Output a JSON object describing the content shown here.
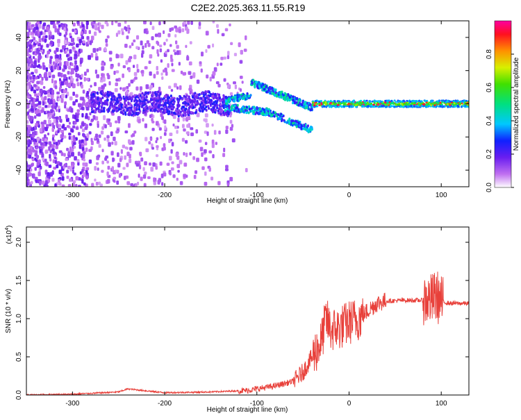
{
  "title": "C2E2.2025.363.11.55.R19",
  "colors": {
    "signal_trace": "#e8403a",
    "spectrogram_low": "#7a2cf0",
    "spectrogram_high": "#ff0040"
  },
  "chart_data": [
    {
      "type": "heatmap",
      "xlabel": "Height of straight line (km)",
      "ylabel": "Frequency (Hz)",
      "xlim": [
        -350,
        130
      ],
      "ylim": [
        -50,
        50
      ],
      "x_ticks": [
        -300,
        -200,
        -100,
        0,
        100
      ],
      "y_ticks": [
        -40,
        -20,
        0,
        20,
        40
      ],
      "colorbar": {
        "label": "Normalized spectral amplitude",
        "range": [
          0,
          1
        ],
        "ticks": [
          "0.0",
          "0.2",
          "0.4",
          "0.6",
          "0.8"
        ],
        "tick_values": [
          0,
          0.2,
          0.4,
          0.6,
          0.8
        ]
      },
      "features": [
        {
          "x": [
            -280,
            -130
          ],
          "y": [
            -5,
            5
          ],
          "amplitude": 0.15
        },
        {
          "x": [
            -130,
            -70
          ],
          "y": [
            -8,
            14
          ],
          "amplitude": 0.35
        },
        {
          "x": [
            -70,
            -40
          ],
          "y": [
            -17,
            10
          ],
          "amplitude": 0.45
        },
        {
          "x": [
            -40,
            130
          ],
          "y": [
            -2,
            2
          ],
          "amplitude": 0.9
        }
      ]
    },
    {
      "type": "line",
      "xlabel": "Height of straight line (km)",
      "ylabel": "SNR (10 * v/v)",
      "y_multiplier": "(x10",
      "y_multiplier_exp": "4",
      "y_multiplier_close": ")",
      "xlim": [
        -350,
        130
      ],
      "ylim": [
        0,
        2.2
      ],
      "x_ticks": [
        -300,
        -200,
        -100,
        0,
        100
      ],
      "y_ticks": [
        "0.0",
        "0.5",
        "1.0",
        "1.5",
        "2.0"
      ],
      "y_tick_values": [
        0,
        0.5,
        1,
        1.5,
        2
      ],
      "series": [
        {
          "x": [
            -350,
            -300,
            -250,
            -240,
            -200,
            -150,
            -110,
            -100,
            -80,
            -60,
            -50,
            -40,
            -30,
            -25,
            -20,
            -10,
            0,
            10,
            20,
            30,
            40,
            60,
            80,
            90,
            95,
            100,
            110,
            130
          ],
          "y": [
            0.0,
            0.01,
            0.04,
            0.08,
            0.03,
            0.04,
            0.06,
            0.08,
            0.12,
            0.18,
            0.3,
            0.5,
            0.7,
            1.0,
            0.85,
            0.88,
            0.95,
            1.0,
            1.1,
            1.2,
            1.23,
            1.24,
            1.24,
            1.25,
            1.3,
            1.22,
            1.2,
            1.2
          ]
        }
      ]
    }
  ]
}
